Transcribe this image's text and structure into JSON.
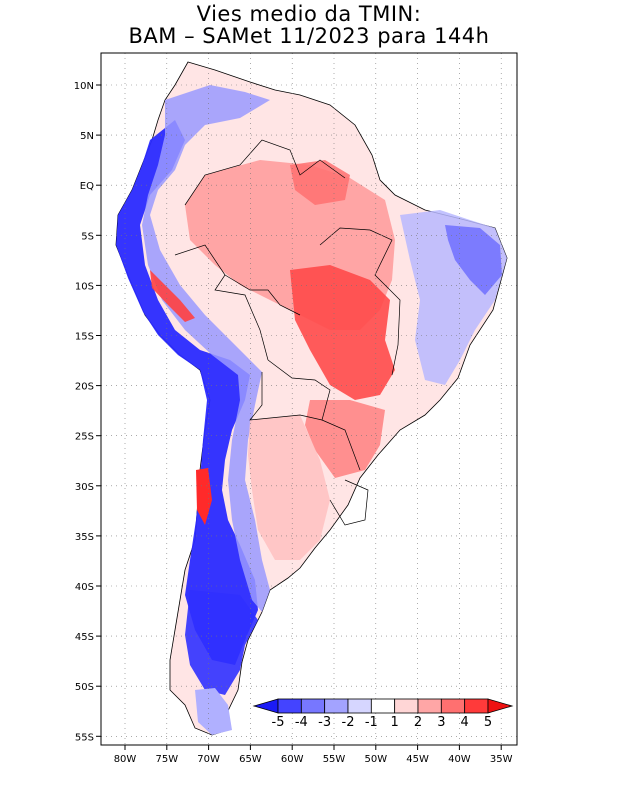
{
  "title": {
    "line1": "Vies medio da TMIN:",
    "line2": "BAM – SAMet 11/2023  para 144h"
  },
  "axes": {
    "lat_labels": [
      "10N",
      "5N",
      "EQ",
      "5S",
      "10S",
      "15S",
      "20S",
      "25S",
      "30S",
      "35S",
      "40S",
      "45S",
      "50S",
      "55S"
    ],
    "lon_labels": [
      "80W",
      "75W",
      "70W",
      "65W",
      "60W",
      "55W",
      "50W",
      "45W",
      "40W",
      "35W"
    ]
  },
  "colorbar": {
    "labels": [
      "-5",
      "-4",
      "-3",
      "-2",
      "-1",
      "1",
      "2",
      "3",
      "4",
      "5"
    ],
    "colors": [
      "#1b1bf5",
      "#4444ff",
      "#7777ff",
      "#a3a3ff",
      "#d6d6ff",
      "#ffffff",
      "#ffd6d6",
      "#ffa6a6",
      "#ff7070",
      "#ff3a3a",
      "#ee1111"
    ]
  }
}
